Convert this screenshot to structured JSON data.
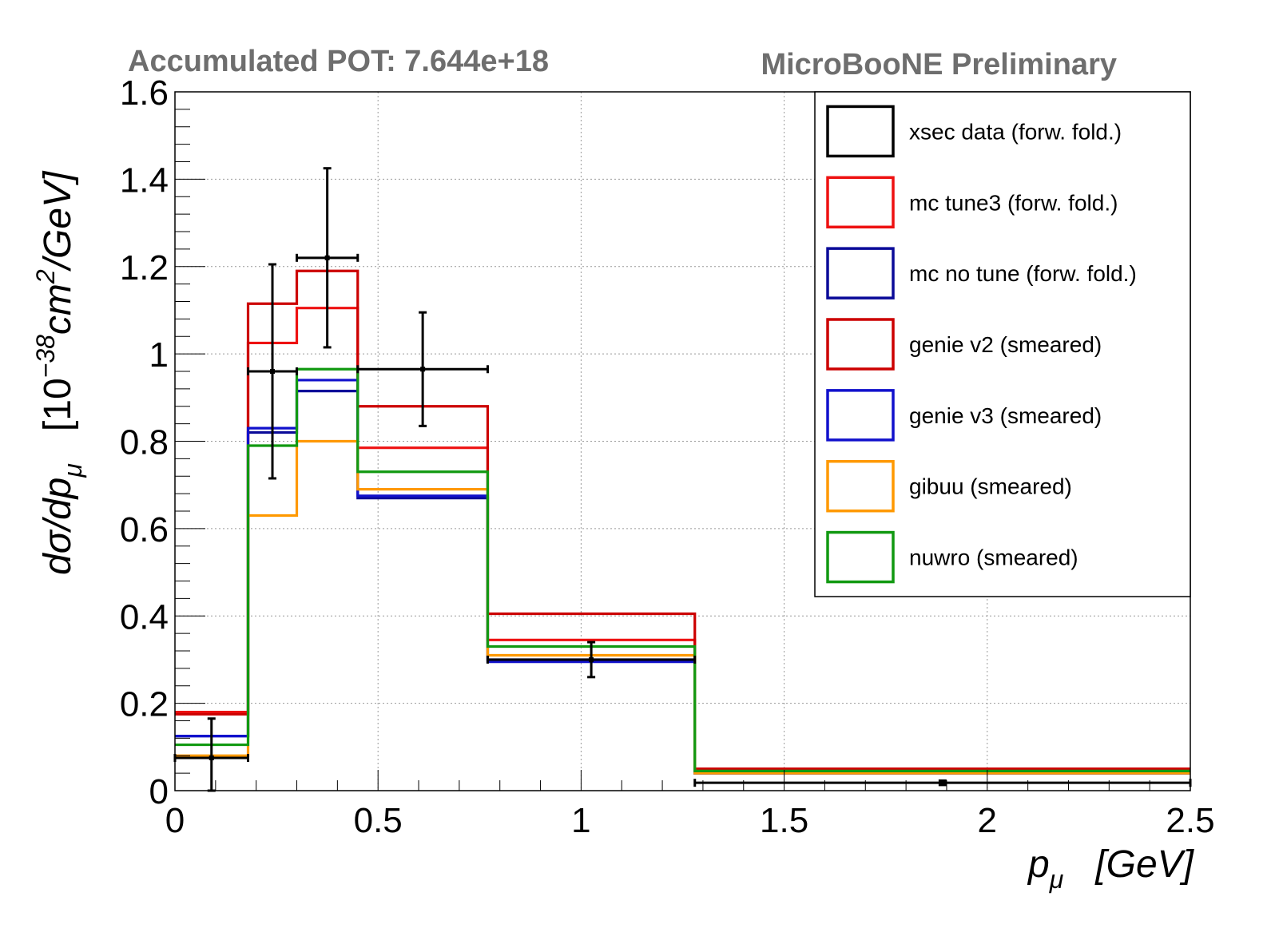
{
  "header": {
    "pot_label": "Accumulated POT: 7.644e+18",
    "experiment_label": "MicroBooNE Preliminary"
  },
  "chart_data": {
    "type": "bar",
    "xlabel": "p_{μ}   [GeV]",
    "ylabel": "dσ/dp_{μ}   [10^{-38}cm^{2}/GeV]",
    "xlim": [
      0,
      2.5
    ],
    "ylim": [
      0,
      1.6
    ],
    "x_ticks": [
      "0",
      "0.5",
      "1",
      "1.5",
      "2",
      "2.5"
    ],
    "y_ticks": [
      "0",
      "0.2",
      "0.4",
      "0.6",
      "0.8",
      "1",
      "1.2",
      "1.4",
      "1.6"
    ],
    "grid": true,
    "legend_position": "top-right",
    "bin_edges": [
      0,
      0.18,
      0.3,
      0.45,
      0.77,
      1.28,
      2.5
    ],
    "series": [
      {
        "name": "xsec data (forw. fold.)",
        "style": "points",
        "color": "#000000",
        "x": [
          0.09,
          0.24,
          0.375,
          0.61,
          1.025,
          1.89
        ],
        "values": [
          0.075,
          0.96,
          1.22,
          0.965,
          0.3,
          0.018
        ],
        "errors": [
          0.09,
          0.245,
          0.205,
          0.13,
          0.04,
          0.005
        ]
      },
      {
        "name": "mc tune3 (forw. fold.)",
        "style": "step",
        "color": "#ee1111",
        "values": [
          0.18,
          1.025,
          1.105,
          0.785,
          0.345,
          0.045
        ]
      },
      {
        "name": "mc no tune (forw. fold.)",
        "style": "step",
        "color": "#0b0b99",
        "values": [
          0.125,
          0.82,
          0.915,
          0.67,
          0.3,
          0.04
        ]
      },
      {
        "name": "genie v2 (smeared)",
        "style": "step",
        "color": "#cc0000",
        "values": [
          0.175,
          1.115,
          1.19,
          0.88,
          0.405,
          0.05
        ]
      },
      {
        "name": "genie v3 (smeared)",
        "style": "step",
        "color": "#1111cc",
        "values": [
          0.125,
          0.83,
          0.94,
          0.675,
          0.295,
          0.04
        ]
      },
      {
        "name": "gibuu (smeared)",
        "style": "step",
        "color": "#ff9900",
        "values": [
          0.08,
          0.63,
          0.8,
          0.69,
          0.31,
          0.04
        ]
      },
      {
        "name": "nuwro (smeared)",
        "style": "step",
        "color": "#119911",
        "values": [
          0.105,
          0.79,
          0.965,
          0.73,
          0.33,
          0.045
        ]
      }
    ]
  }
}
